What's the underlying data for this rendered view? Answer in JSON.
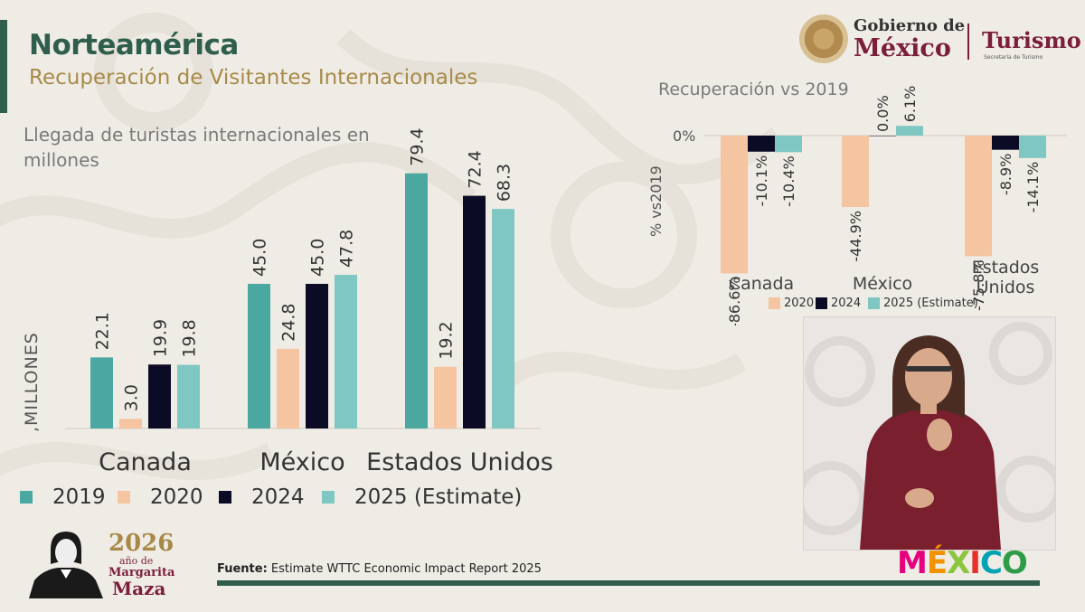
{
  "header": {
    "title": "Norteamérica",
    "subtitle": "Recuperación de Visitantes Internacionales"
  },
  "logos": {
    "gobierno_line1": "Gobierno de",
    "gobierno_line2": "México",
    "turismo": "Turismo",
    "turismo_sub": "Secretaría de Turismo",
    "mexico_brand": "MÉXICO",
    "margarita_year": "2026",
    "margarita_small": "año de",
    "margarita_name1": "Margarita",
    "margarita_name2": "Maza"
  },
  "colors": {
    "s2019": "#4ba8a0",
    "s2020": "#f5c4a0",
    "s2024": "#0c0b25",
    "s2025": "#7ec7c2",
    "accent_green": "#2f5e4d",
    "accent_gold": "#a88a48",
    "brand_maroon": "#7b1e3a"
  },
  "footer": {
    "fuente_label": "Fuente:",
    "fuente_text": " Estimate WTTC Economic Impact Report 2025"
  },
  "chart_data": [
    {
      "type": "bar",
      "title": "Llegada de turistas  internacionales en millones",
      "ylabel": ",MILLONES",
      "categories": [
        "Canada",
        "México",
        "Estados Unidos"
      ],
      "series": [
        {
          "name": "2019",
          "values": [
            22.1,
            45.0,
            79.4
          ]
        },
        {
          "name": "2020",
          "values": [
            3.0,
            24.8,
            19.2
          ]
        },
        {
          "name": "2024",
          "values": [
            19.9,
            45.0,
            72.4
          ]
        },
        {
          "name": "2025 (Estimate)",
          "values": [
            19.8,
            47.8,
            68.3
          ]
        }
      ],
      "data_labels": [
        [
          "22.1",
          "45.0",
          "79.4"
        ],
        [
          "3.0",
          "24.8",
          "19.2"
        ],
        [
          "19.9",
          "45.0",
          "72.4"
        ],
        [
          "19.8",
          "47.8",
          "68.3"
        ]
      ],
      "ylim": [
        0,
        90
      ],
      "legend": "bottom",
      "grid": false
    },
    {
      "type": "bar",
      "title": "Recuperación vs 2019",
      "ylabel": "% vs2019",
      "zero_label": "0%",
      "categories": [
        "Canada",
        "México",
        "Estados Unidos"
      ],
      "category_labels": [
        [
          "Canada"
        ],
        [
          "México"
        ],
        [
          "Estados",
          "Unidos"
        ]
      ],
      "series": [
        {
          "name": "2020",
          "values": [
            -86.6,
            -44.9,
            -75.8
          ]
        },
        {
          "name": "2024",
          "values": [
            -10.1,
            0.0,
            -8.9
          ]
        },
        {
          "name": "2025 (Estimate)",
          "values": [
            -10.4,
            6.1,
            -14.1
          ]
        }
      ],
      "data_labels": [
        [
          "-86.6%",
          "-44.9%",
          "-75.8%"
        ],
        [
          "-10.1%",
          "0.0%",
          "-8.9%"
        ],
        [
          "-10.4%",
          "6.1%",
          "-14.1%"
        ]
      ],
      "ylim": [
        -90,
        10
      ],
      "legend": "bottom",
      "grid": false
    }
  ]
}
